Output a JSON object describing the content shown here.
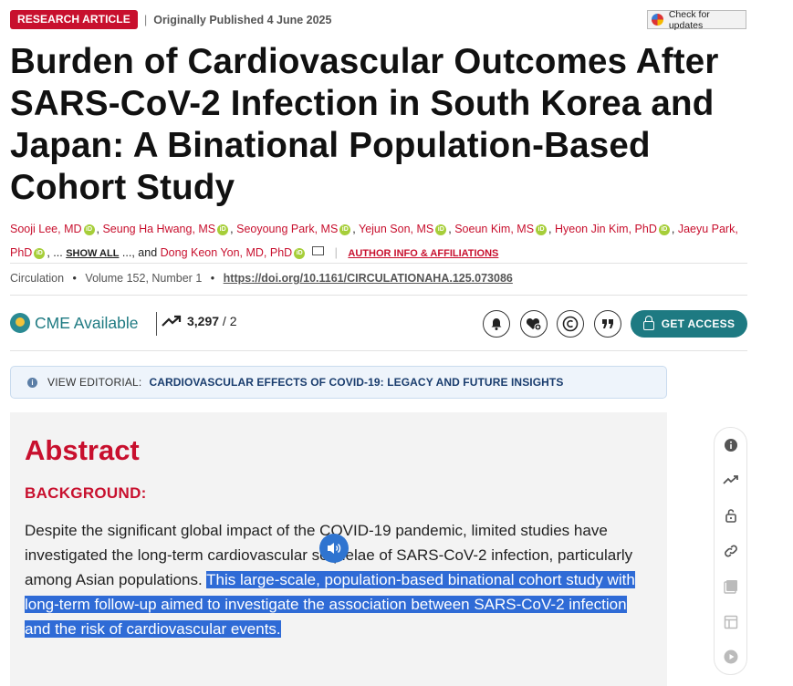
{
  "header": {
    "badge": "RESEARCH ARTICLE",
    "separator": "|",
    "published_prefix": "Originally Published",
    "published_date": "4 June 2025",
    "check_updates": "Check for updates"
  },
  "title": "Burden of Cardiovascular Outcomes After SARS-CoV-2 Infection in South Korea and Japan: A Binational Population-Based Cohort Study",
  "authors": {
    "list": [
      "Sooji Lee, MD",
      "Seung Ha Hwang, MS",
      "Seoyoung Park, MS",
      "Yejun Son, MS",
      "Soeun Kim, MS",
      "Hyeon Jin Kim, PhD",
      "Jaeyu Park, PhD"
    ],
    "ellipsis": "...",
    "show_all": "SHOW ALL",
    "and_text": "..., and",
    "last_author": "Dong Keon Yon, MD, PhD",
    "affiliations_link": "AUTHOR INFO & AFFILIATIONS"
  },
  "citation": {
    "journal": "Circulation",
    "volume": "Volume 152, Number 1",
    "doi": "https://doi.org/10.1161/CIRCULATIONAHA.125.073086"
  },
  "toolbar": {
    "cme_label": "CME Available",
    "metrics_value": "3,297",
    "metrics_sep": " / 2",
    "access_label": "GET ACCESS",
    "icons": [
      "bell-icon",
      "heart-plus-icon",
      "copyright-icon",
      "quote-icon"
    ]
  },
  "editorial": {
    "label": "VIEW EDITORIAL:",
    "link": "CARDIOVASCULAR EFFECTS OF COVID-19: LEGACY AND FUTURE INSIGHTS"
  },
  "abstract": {
    "heading": "Abstract",
    "section": "BACKGROUND:",
    "text_plain": "Despite the significant global impact of the COVID-19 pandemic, limited studies have investigated the long-term cardiovascular sequelae of SARS-CoV-2 infection, particularly among Asian populations.",
    "text_highlighted": "This large-scale, population-based binational cohort study with long-term follow-up aimed to investigate the association between SARS-CoV-2 infection and the risk of cardiovascular events."
  },
  "side_tools": [
    "info-icon",
    "trending-icon",
    "unlock-icon",
    "link-icon",
    "image-icon",
    "table-icon",
    "play-icon"
  ],
  "colors": {
    "brand_red": "#c8102e",
    "teal": "#1e7a82",
    "selection_blue": "#2f6bd6"
  }
}
